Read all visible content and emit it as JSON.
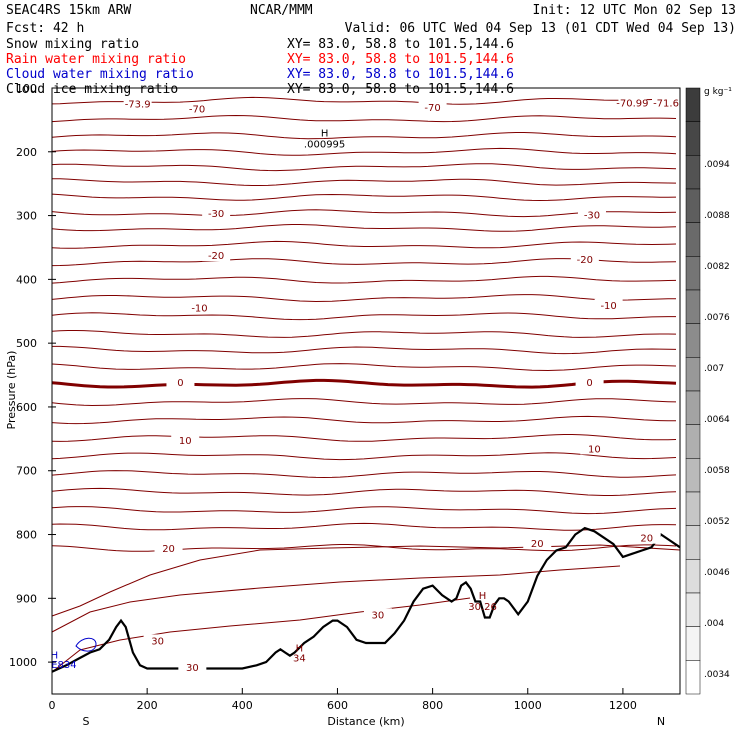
{
  "header": {
    "model": "SEAC4RS 15km ARW",
    "center": "NCAR/MMM",
    "init": "Init: 12 UTC Mon 02 Sep 13",
    "fcst": "Fcst:    42 h",
    "valid": "Valid: 06 UTC Wed 04 Sep 13 (01 CDT Wed 04 Sep 13)",
    "fields": [
      {
        "label": "Snow mixing ratio",
        "xy": "XY=  83.0, 58.8 to 101.5,144.6",
        "color": "#000000"
      },
      {
        "label": "Rain water mixing ratio",
        "xy": "XY=  83.0, 58.8 to 101.5,144.6",
        "color": "#ff0000"
      },
      {
        "label": "Cloud water mixing ratio",
        "xy": "XY=  83.0, 58.8 to 101.5,144.6",
        "color": "#0000cc"
      },
      {
        "label": "Cloud ice mixing ratio",
        "xy": "XY=  83.0, 58.8 to 101.5,144.6",
        "color": "#000000"
      }
    ]
  },
  "chart_data": {
    "type": "line",
    "xlabel": "Distance (km)",
    "ylabel": "Pressure (hPa)",
    "xlim": [
      0,
      1320
    ],
    "ylim": [
      1050,
      100
    ],
    "x_ticks": [
      0,
      200,
      400,
      600,
      800,
      1000,
      1200
    ],
    "y_ticks": [
      200,
      300,
      400,
      500,
      600,
      700,
      800,
      900,
      1000
    ],
    "top_tick_label": "100",
    "x_end_labels": {
      "left": "S",
      "right": "N"
    },
    "colorbar": {
      "unit": "g kg⁻¹",
      "labels": [
        ".0094",
        ".0088",
        ".0082",
        ".0076",
        ".007",
        ".0064",
        ".0058",
        ".0052",
        ".0046",
        ".004",
        ".0034"
      ]
    },
    "terrain": {
      "x": [
        0,
        30,
        60,
        80,
        100,
        120,
        135,
        145,
        155,
        170,
        185,
        200,
        300,
        400,
        430,
        450,
        470,
        480,
        490,
        500,
        510,
        530,
        550,
        570,
        590,
        600,
        620,
        640,
        660,
        700,
        720,
        740,
        760,
        780,
        800,
        820,
        840,
        850,
        860,
        870,
        880,
        890,
        900,
        910,
        920,
        930,
        940,
        950,
        960,
        980,
        1000,
        1020,
        1040,
        1060,
        1080,
        1100,
        1120,
        1140,
        1160,
        1180,
        1200,
        1220,
        1240,
        1260,
        1280,
        1300,
        1320
      ],
      "p": [
        1015,
        1005,
        993,
        985,
        980,
        965,
        945,
        935,
        945,
        985,
        1005,
        1010,
        1010,
        1010,
        1005,
        1000,
        985,
        980,
        985,
        990,
        985,
        970,
        960,
        945,
        935,
        935,
        945,
        965,
        970,
        970,
        955,
        935,
        905,
        885,
        880,
        895,
        905,
        900,
        880,
        875,
        885,
        905,
        905,
        930,
        930,
        910,
        900,
        900,
        905,
        925,
        905,
        865,
        840,
        825,
        820,
        800,
        790,
        795,
        805,
        815,
        835,
        830,
        825,
        820,
        800,
        810,
        820
      ]
    },
    "isotherm_labels": [
      {
        "text": "-73.9",
        "x": 180,
        "p": 124
      },
      {
        "text": "-70",
        "x": 305,
        "p": 132
      },
      {
        "text": "-70",
        "x": 800,
        "p": 130
      },
      {
        "text": "-70.99",
        "x": 1220,
        "p": 123
      },
      {
        "text": "-71.6",
        "x": 1320,
        "p": 123
      },
      {
        "text": "-30",
        "x": 345,
        "p": 296
      },
      {
        "text": "-30",
        "x": 1135,
        "p": 298
      },
      {
        "text": "-20",
        "x": 345,
        "p": 362
      },
      {
        "text": "-20",
        "x": 1120,
        "p": 368
      },
      {
        "text": "-10",
        "x": 310,
        "p": 444
      },
      {
        "text": "-10",
        "x": 1170,
        "p": 440
      },
      {
        "text": "0",
        "x": 270,
        "p": 561
      },
      {
        "text": "0",
        "x": 1130,
        "p": 561
      },
      {
        "text": "10",
        "x": 280,
        "p": 652
      },
      {
        "text": "10",
        "x": 1140,
        "p": 665
      },
      {
        "text": "20",
        "x": 245,
        "p": 821
      },
      {
        "text": "20",
        "x": 1020,
        "p": 813
      },
      {
        "text": "20",
        "x": 1250,
        "p": 805
      },
      {
        "text": "30",
        "x": 222,
        "p": 966
      },
      {
        "text": "30",
        "x": 295,
        "p": 1008
      },
      {
        "text": "30",
        "x": 685,
        "p": 925
      }
    ],
    "annotations": [
      {
        "text": "H",
        "x": 573,
        "p": 170,
        "color": "#000000"
      },
      {
        "text": ".000995",
        "x": 573,
        "p": 187,
        "color": "#000000"
      },
      {
        "text": "H",
        "x": 905,
        "p": 895,
        "color": "#800000"
      },
      {
        "text": "30.26",
        "x": 905,
        "p": 912,
        "color": "#800000"
      },
      {
        "text": "H",
        "x": 520,
        "p": 977,
        "color": "#800000"
      },
      {
        "text": "34",
        "x": 520,
        "p": 993,
        "color": "#800000"
      },
      {
        "text": "H",
        "x": 5,
        "p": 988,
        "color": "#0000cc"
      },
      {
        "text": "E834",
        "x": 25,
        "p": 1003,
        "color": "#0000cc"
      }
    ]
  }
}
